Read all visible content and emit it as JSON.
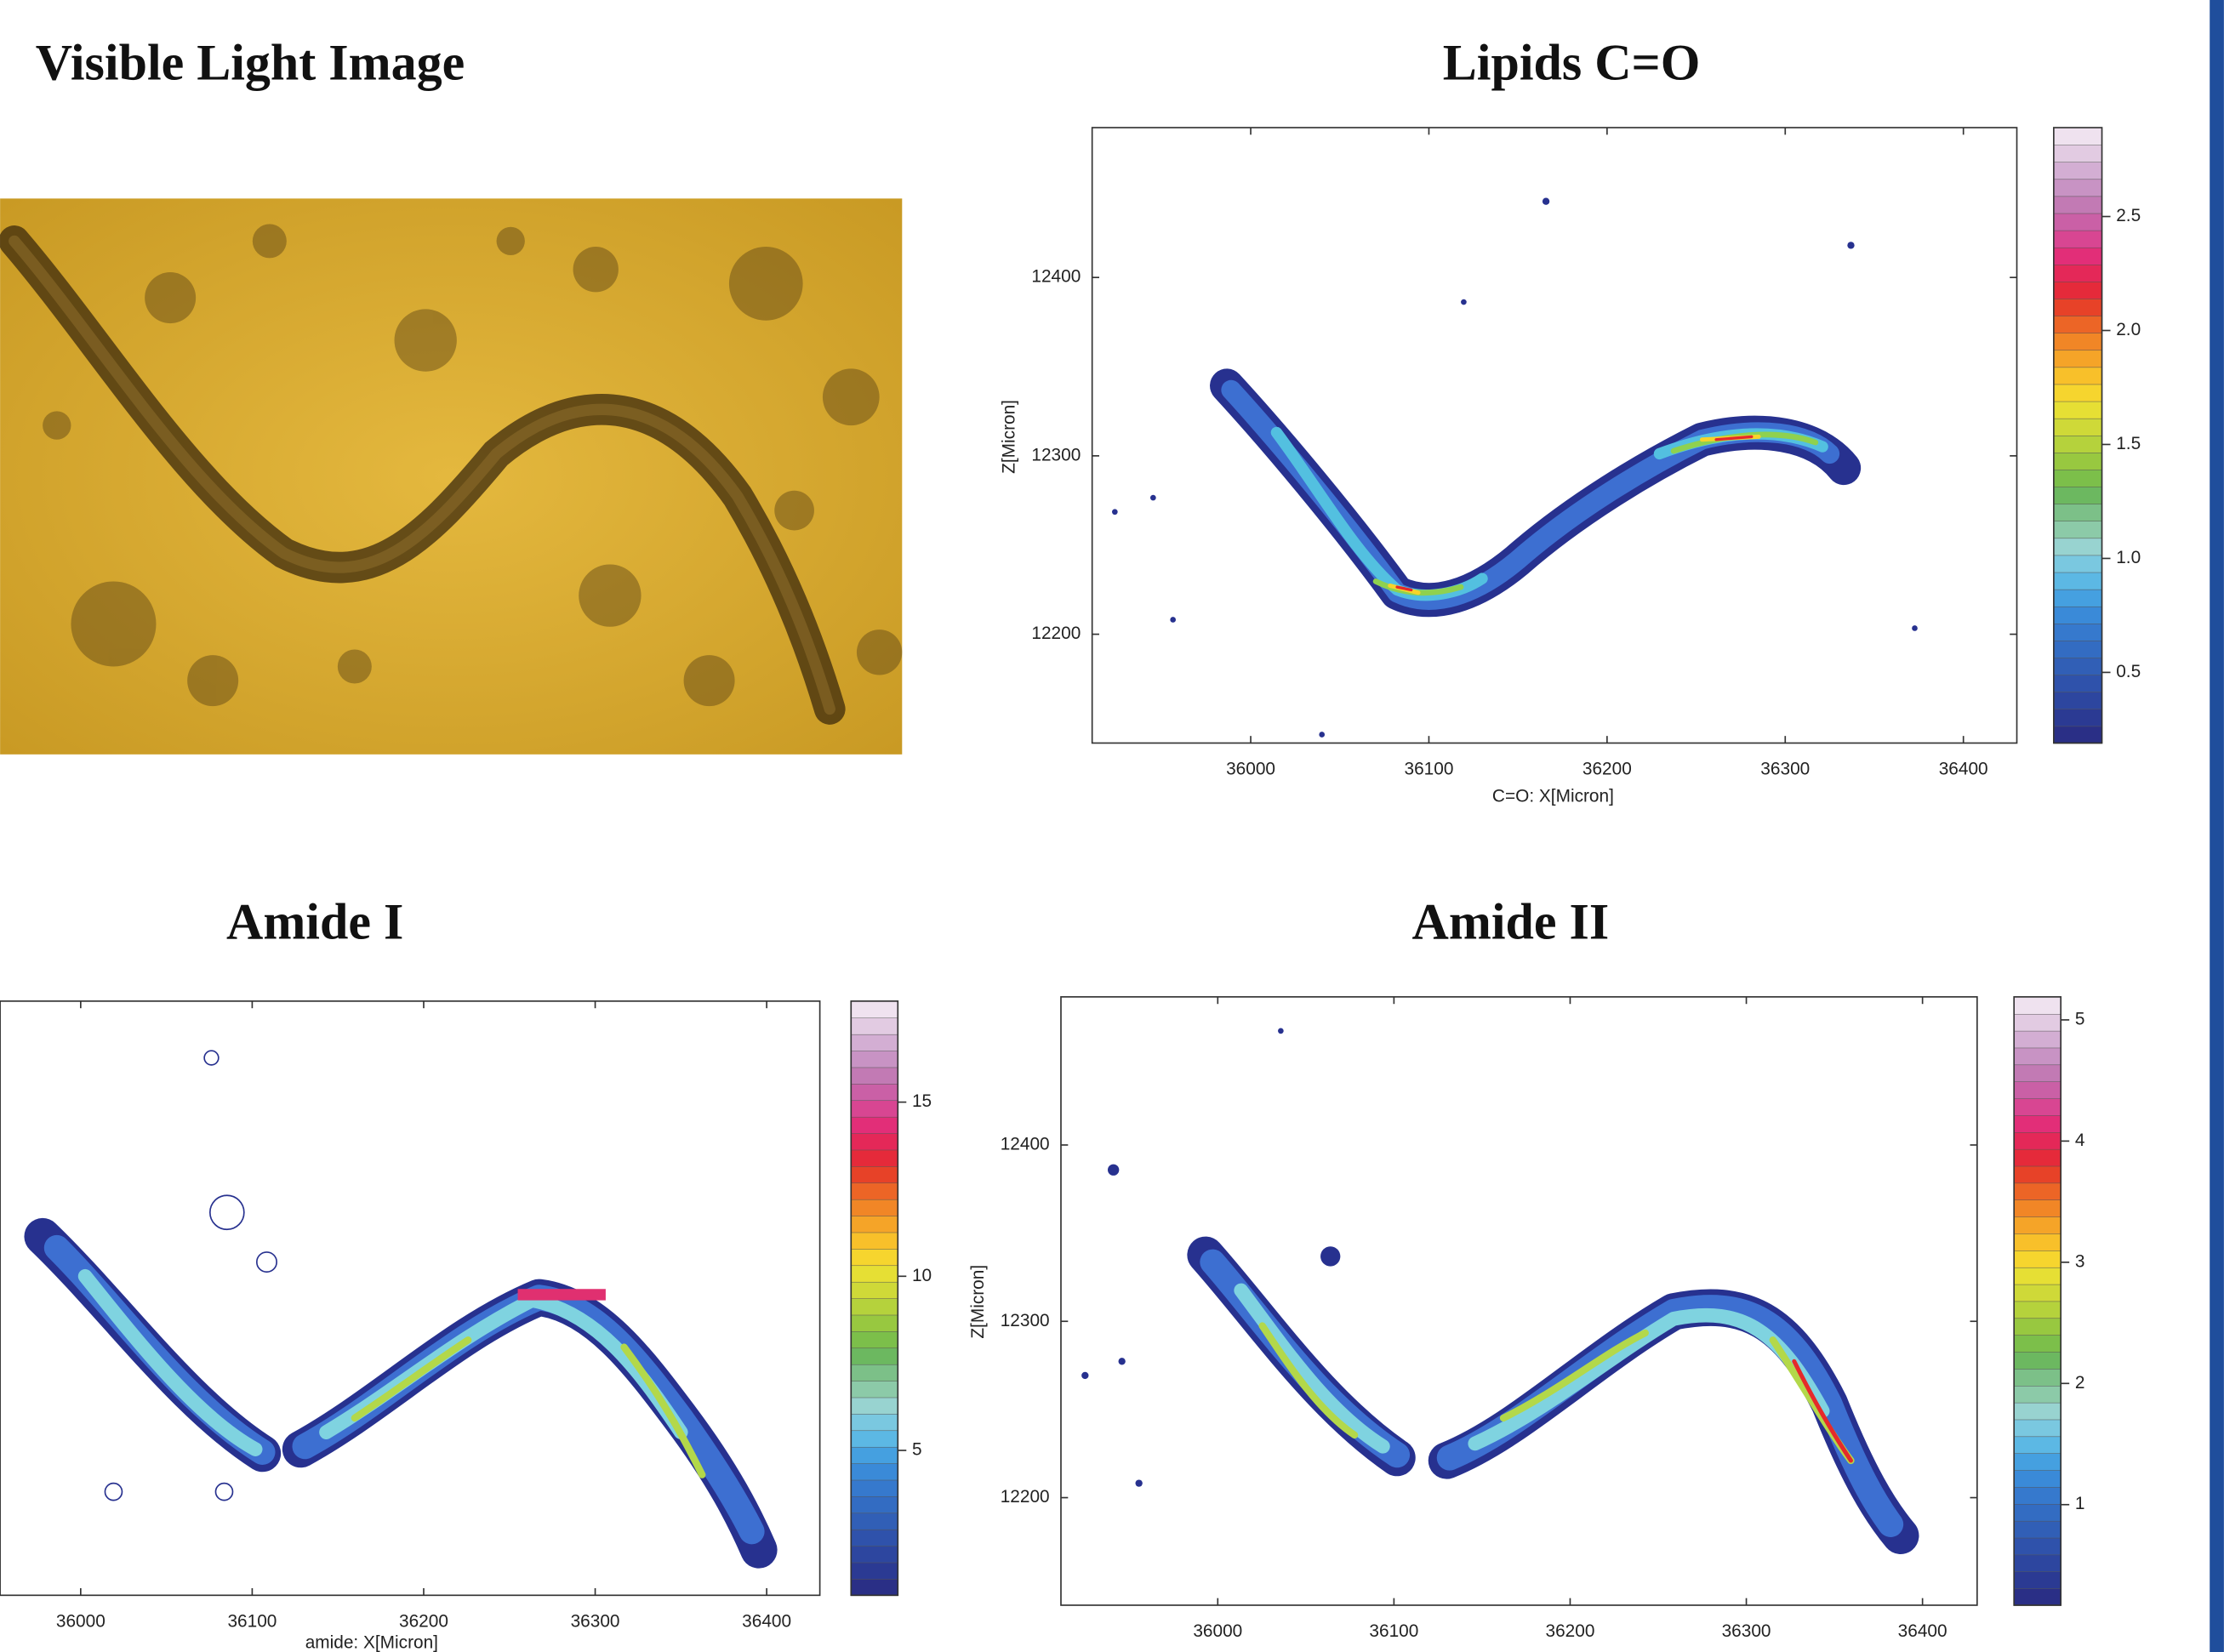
{
  "panels": [
    {
      "title": "Visible Light Image"
    },
    {
      "title": "Lipids C=O",
      "x_label": "C=O: X[Micron]",
      "y_label": "Z[Micron]",
      "xlim": [
        35911,
        36430
      ],
      "xticks": [
        36000,
        36100,
        36200,
        36300,
        36400
      ],
      "ylim": [
        12139,
        12484
      ],
      "yticks": [
        12200,
        12300,
        12400
      ],
      "colorbar": {
        "lim": [
          0.19,
          2.89
        ],
        "ticks": [
          0.5,
          {
            "value": 1,
            "label": "1.0"
          },
          1.5,
          {
            "value": 2,
            "label": "2.0"
          },
          2.5
        ]
      }
    },
    {
      "title": "Amide I",
      "x_label": "amide: X[Micron]",
      "xlim": [
        35953,
        36431
      ],
      "xticks": [
        36000,
        36100,
        36200,
        36300,
        36400
      ],
      "colorbar": {
        "lim": [
          0.84,
          17.9
        ],
        "ticks": [
          5,
          10,
          15
        ]
      }
    },
    {
      "title": "Amide II",
      "y_label": "Z[Micron]",
      "xlim": [
        35911,
        36431
      ],
      "xticks": [
        36000,
        36100,
        36200,
        36300,
        36400
      ],
      "ylim": [
        12139,
        12484
      ],
      "yticks": [
        12200,
        12300,
        12400
      ],
      "colorbar": {
        "lim": [
          0.17,
          5.19
        ],
        "ticks": [
          1,
          2,
          3,
          4,
          5
        ]
      }
    }
  ]
}
